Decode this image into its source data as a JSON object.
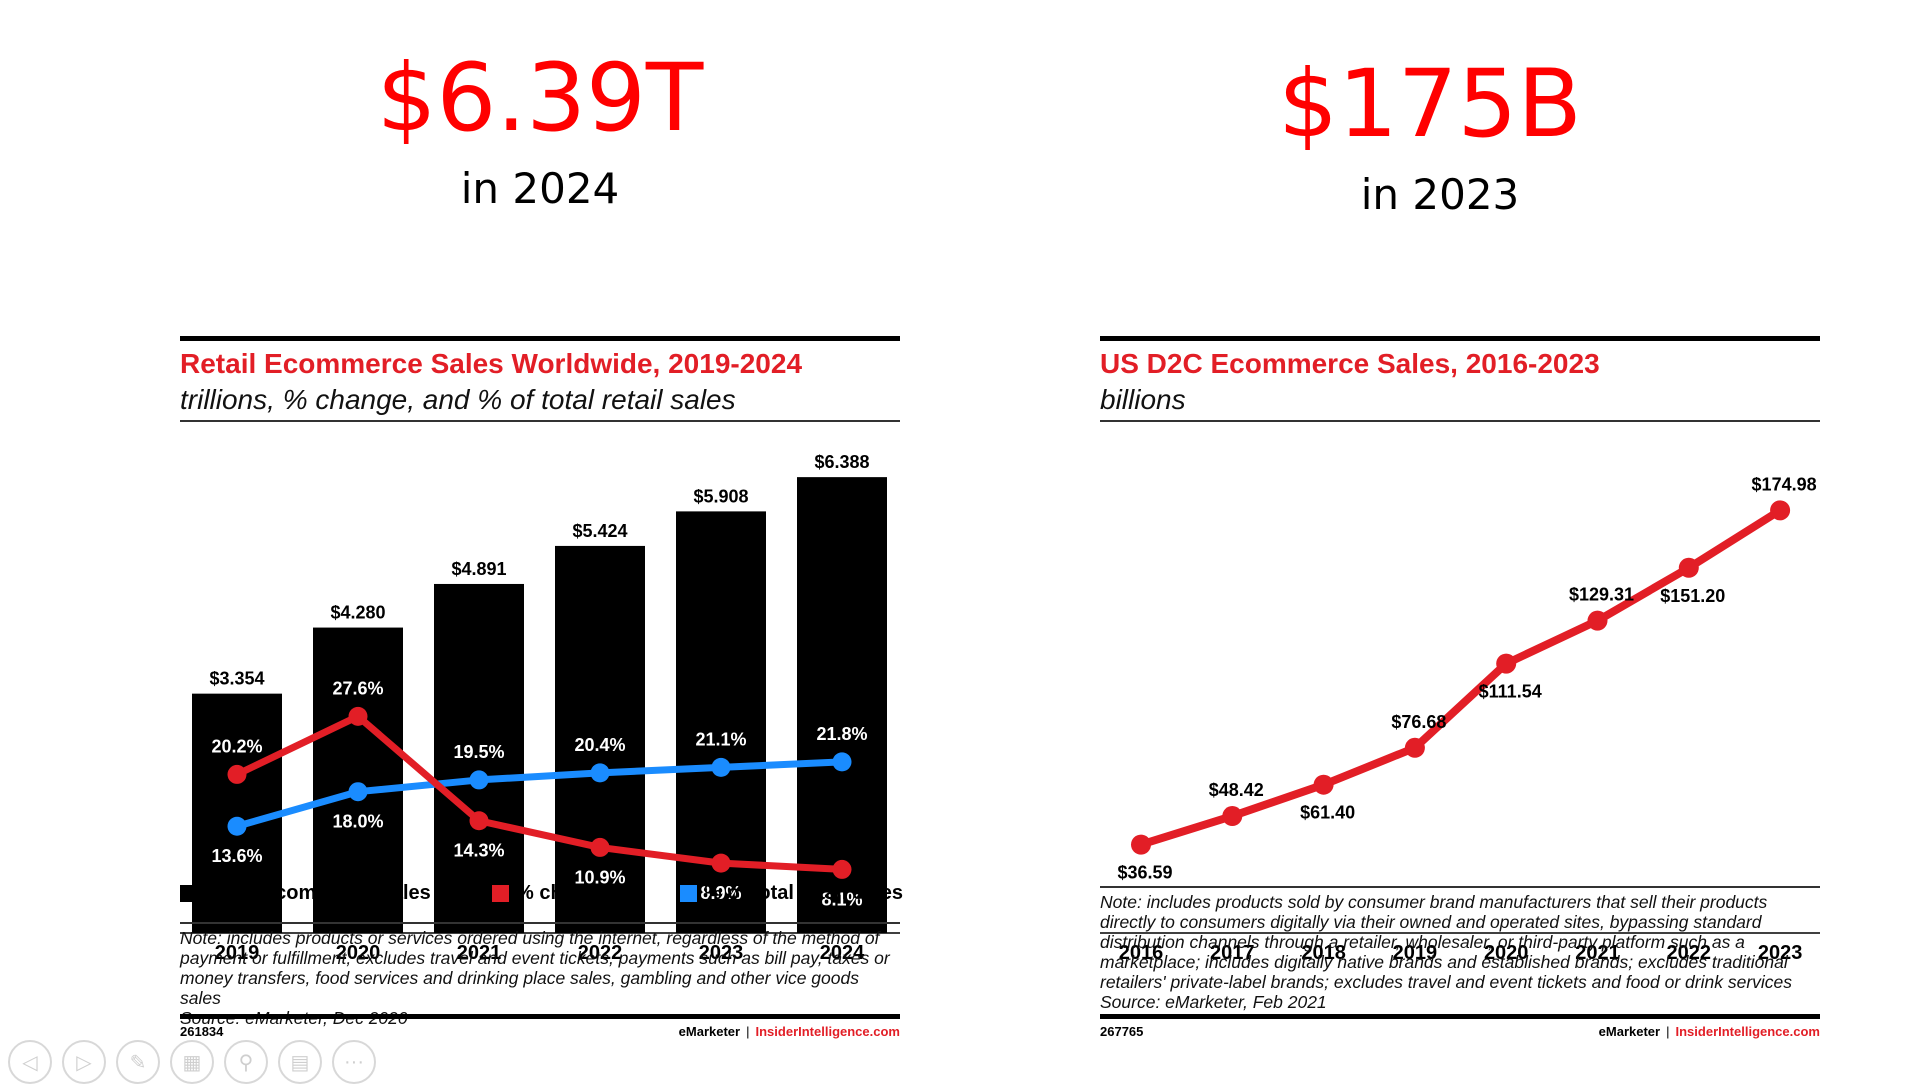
{
  "headline_left": {
    "value": "$6.39T",
    "caption": "in 2024"
  },
  "headline_right": {
    "value": "$175B",
    "caption": "in 2023"
  },
  "left_panel": {
    "title": "Retail Ecommerce Sales Worldwide, 2019-2024",
    "subtitle": "trillions, % change, and % of total retail sales",
    "note": "Note: includes products or services ordered using the internet, regardless of the method of payment or fulfillment; excludes travel and event tickets, payments such as bill pay, taxes or money transfers, food services and drinking place sales, gambling and other vice goods sales",
    "source": "Source: eMarketer, Dec 2020",
    "id": "261834",
    "brand": "eMarketer",
    "brand2": "InsiderIntelligence.com",
    "legend": [
      "Retail ecommerce sales",
      "% change",
      "% of total retail sales"
    ]
  },
  "right_panel": {
    "title": "US D2C Ecommerce Sales, 2016-2023",
    "subtitle": "billions",
    "note": "Note: includes products sold by consumer brand manufacturers that sell their products directly to consumers digitally via their owned and operated sites, bypassing standard distribution channels through a retailer, wholesaler, or third-party platform such as a marketplace; includes digitally native brands and established brands; excludes traditional retailers' private-label brands; excludes travel and event tickets and food or drink services",
    "source": "Source: eMarketer, Feb 2021",
    "id": "267765",
    "brand": "eMarketer",
    "brand2": "InsiderIntelligence.com"
  },
  "colors": {
    "bar": "#000000",
    "change": "#e21e26",
    "share": "#1a8cff",
    "headline": "#ff0000"
  },
  "chart_data": [
    {
      "type": "bar",
      "title": "Retail Ecommerce Sales Worldwide, 2019-2024",
      "subtitle": "trillions, % change, and % of total retail sales",
      "categories": [
        "2019",
        "2020",
        "2021",
        "2022",
        "2023",
        "2024"
      ],
      "series": [
        {
          "name": "Retail ecommerce sales",
          "type": "bar",
          "values": [
            3.354,
            4.28,
            4.891,
            5.424,
            5.908,
            6.388
          ],
          "labels": [
            "$3.354",
            "$4.280",
            "$4.891",
            "$5.424",
            "$5.908",
            "$6.388"
          ]
        },
        {
          "name": "% change",
          "type": "line",
          "values": [
            20.2,
            27.6,
            14.3,
            10.9,
            8.9,
            8.1
          ],
          "labels": [
            "20.2%",
            "27.6%",
            "14.3%",
            "10.9%",
            "8.9%",
            "8.1%"
          ]
        },
        {
          "name": "% of total retail sales",
          "type": "line",
          "values": [
            13.6,
            18.0,
            19.5,
            20.4,
            21.1,
            21.8
          ],
          "labels": [
            "13.6%",
            "18.0%",
            "19.5%",
            "20.4%",
            "21.1%",
            "21.8%"
          ]
        }
      ],
      "ylim": [
        0,
        6.6
      ],
      "pct_lim": [
        0,
        60
      ],
      "grid": false,
      "legend": "bottom"
    },
    {
      "type": "line",
      "title": "US D2C Ecommerce Sales, 2016-2023",
      "subtitle": "billions",
      "categories": [
        "2016",
        "2017",
        "2018",
        "2019",
        "2020",
        "2021",
        "2022",
        "2023"
      ],
      "series": [
        {
          "name": "US D2C Ecommerce Sales",
          "values": [
            36.59,
            48.42,
            61.4,
            76.68,
            111.54,
            129.31,
            151.2,
            174.98
          ],
          "labels": [
            "$36.59",
            "$48.42",
            "$61.40",
            "$76.68",
            "$111.54",
            "$129.31",
            "$151.20",
            "$174.98"
          ]
        }
      ],
      "ylim": [
        0,
        195
      ],
      "grid": false
    }
  ]
}
